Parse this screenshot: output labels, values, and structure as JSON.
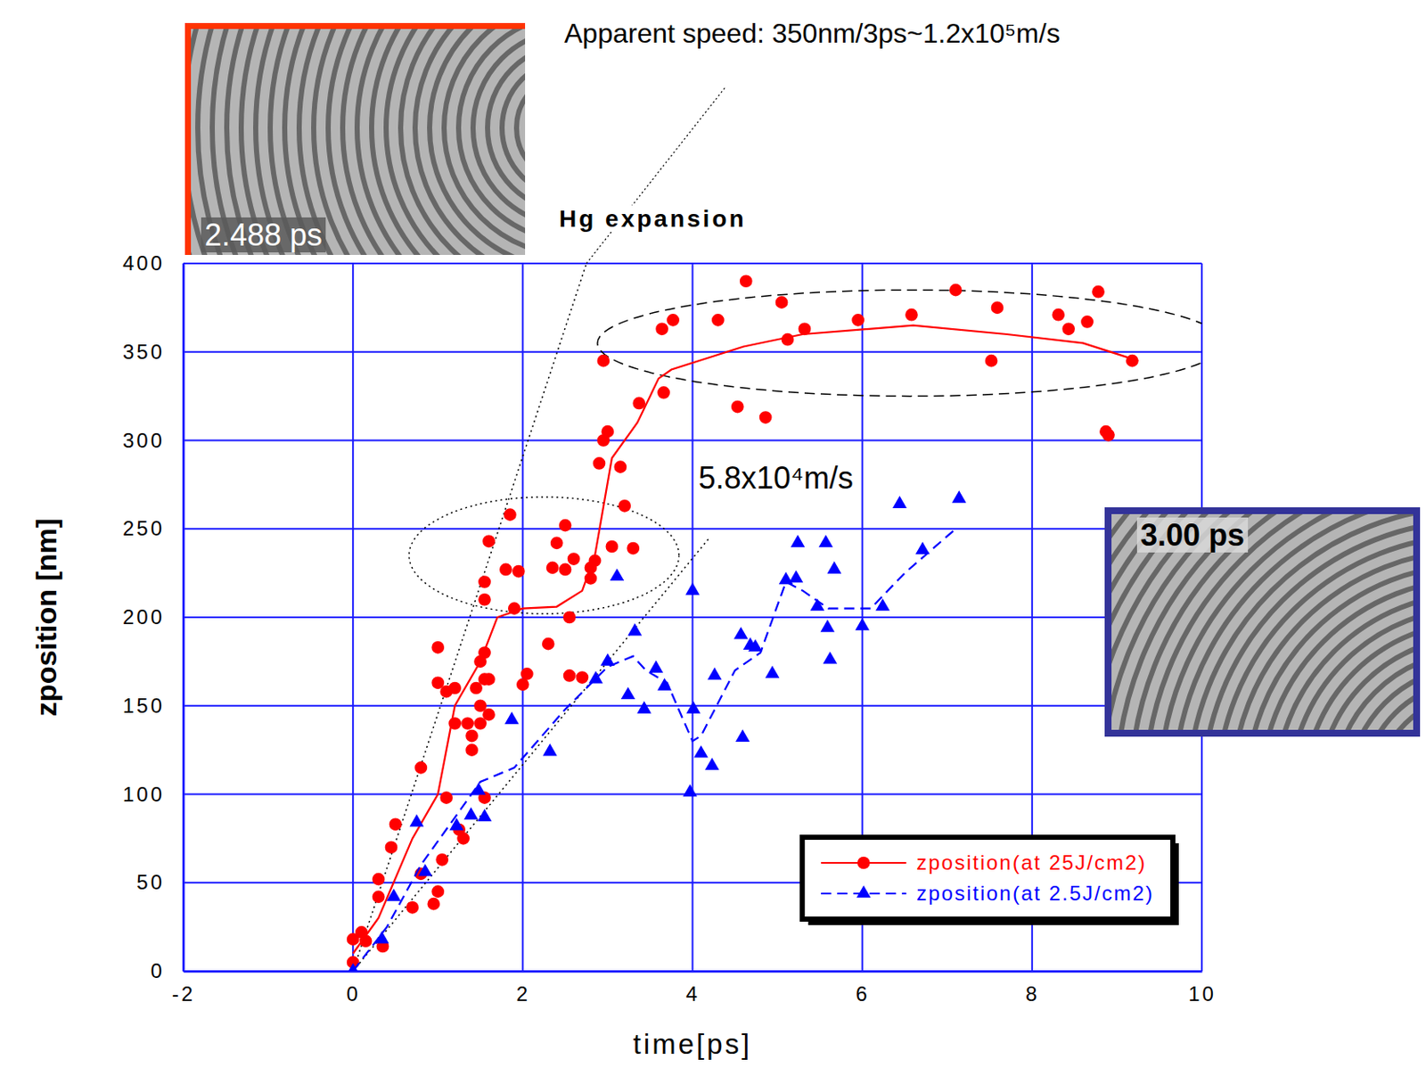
{
  "chart_data": {
    "type": "scatter",
    "title": "Hg expansion",
    "x_label": "time[ps]",
    "y_label": "zposition [nm]",
    "xlim": [
      -2,
      10
    ],
    "xticks": [
      -2,
      0,
      2,
      4,
      6,
      8,
      10
    ],
    "ylim": [
      0,
      400
    ],
    "yticks": [
      0,
      50,
      100,
      150,
      200,
      250,
      300,
      350,
      400
    ],
    "grid": true,
    "legend": "lower right",
    "series": [
      {
        "name": "zposition(at 25J/cm2)",
        "color": "#ff0000",
        "marker": "circle",
        "line_style": "solid",
        "x": [
          0,
          0,
          0.1,
          0.15,
          0.3,
          0.3,
          0.35,
          0.45,
          0.5,
          0.7,
          0.8,
          0.8,
          0.95,
          1.0,
          1.05,
          1.0,
          1.0,
          1.1,
          1.2,
          1.1,
          1.2,
          1.25,
          1.3,
          1.35,
          1.4,
          1.4,
          1.45,
          1.5,
          1.55,
          1.55,
          1.5,
          1.5,
          1.6,
          1.6,
          1.55,
          1.55,
          1.55,
          1.6,
          1.8,
          1.85,
          1.9,
          1.95,
          2.0,
          2.05,
          2.3,
          2.4,
          2.35,
          2.5,
          2.5,
          2.55,
          2.55,
          2.7,
          2.6,
          2.8,
          2.8,
          2.85,
          2.9,
          2.95,
          2.95,
          3.0,
          3.15,
          3.05,
          3.2,
          3.3,
          3.37,
          3.66,
          3.64,
          3.77,
          4.3,
          4.63,
          4.53,
          4.86,
          5.05,
          5.12,
          5.32,
          5.95,
          6.58,
          7.1,
          7.52,
          7.59,
          8.31,
          8.43,
          8.65,
          8.78,
          8.87,
          8.9,
          9.18
        ],
        "values": [
          18,
          5,
          22,
          17,
          52,
          42,
          14,
          70,
          83,
          36,
          55,
          115,
          38,
          45,
          63,
          183,
          163,
          158,
          160,
          98,
          140,
          80,
          75,
          140,
          133,
          125,
          160,
          175,
          180,
          165,
          150,
          140,
          145,
          165,
          98,
          220,
          210,
          243,
          227,
          258,
          205,
          226,
          162,
          168,
          185,
          242,
          228,
          227,
          252,
          167,
          200,
          166,
          233,
          222,
          228,
          232,
          287,
          345,
          300,
          305,
          285,
          240,
          263,
          239,
          321,
          327,
          363,
          368,
          368,
          390,
          319,
          313,
          378,
          357,
          363,
          368,
          371,
          385,
          345,
          375,
          371,
          363,
          367,
          384,
          305,
          303,
          345
        ],
        "trend": {
          "x": [
            0,
            0.3,
            0.7,
            1.0,
            1.2,
            1.5,
            1.7,
            2.0,
            2.4,
            2.7,
            2.85,
            3.05,
            3.35,
            3.6,
            3.75,
            4.6,
            5.3,
            6.6,
            7.7,
            8.6,
            9.25
          ],
          "values": [
            10,
            30,
            75,
            100,
            150,
            175,
            200,
            205,
            206,
            215,
            235,
            290,
            310,
            335,
            340,
            353,
            360,
            365,
            360,
            355,
            345
          ]
        }
      },
      {
        "name": "zposition(at 2.5J/cm2)",
        "color": "#0000ff",
        "marker": "triangle",
        "line_style": "dashed",
        "x": [
          0,
          0.34,
          0.48,
          0.75,
          0.85,
          1.22,
          1.39,
          1.48,
          1.55,
          1.87,
          2.32,
          2.86,
          3.0,
          3.11,
          3.24,
          3.32,
          3.43,
          3.57,
          3.67,
          3.97,
          4.0,
          4.01,
          4.1,
          4.23,
          4.26,
          4.59,
          4.57,
          4.68,
          4.74,
          4.94,
          5.1,
          5.24,
          5.22,
          5.47,
          5.57,
          5.59,
          5.62,
          5.67,
          6.0,
          6.24,
          6.44,
          6.71,
          7.14
        ],
        "values": [
          0,
          18,
          42,
          84,
          56,
          82,
          88,
          102,
          87,
          142,
          124,
          165,
          175,
          223,
          156,
          192,
          148,
          171,
          161,
          101,
          215,
          148,
          123,
          116,
          167,
          132,
          190,
          184,
          183,
          168,
          221,
          242,
          222,
          206,
          242,
          194,
          176,
          227,
          195,
          206,
          264,
          238,
          267
        ],
        "trend": {
          "x": [
            0,
            0.4,
            0.8,
            1.5,
            1.9,
            2.5,
            3.0,
            3.3,
            3.45,
            3.7,
            4.0,
            4.1,
            4.5,
            4.8,
            5.1,
            5.3,
            5.6,
            6.1,
            6.5,
            7.1
          ],
          "values": [
            0,
            25,
            60,
            107,
            115,
            148,
            172,
            178,
            170,
            163,
            130,
            133,
            170,
            180,
            220,
            215,
            205,
            205,
            225,
            250
          ]
        }
      }
    ],
    "annotations": [
      {
        "text": "Apparent speed: 350nm/3ps~1.2x10⁵m/s",
        "line_style": "dotted",
        "line": {
          "x": [
            0,
            2.75
          ],
          "y": [
            0,
            400
          ]
        }
      },
      {
        "text": "5.8x10⁴m/s",
        "line_style": "dotted",
        "line": {
          "x": [
            0,
            4.2
          ],
          "y": [
            0,
            245
          ]
        }
      }
    ],
    "highlights": [
      {
        "x": 6.57,
        "y": 355,
        "rx": 3.69,
        "ry": 30,
        "line_style": "dashed"
      },
      {
        "x": 2.25,
        "y": 235,
        "rx": 1.59,
        "ry": 33,
        "line_style": "dotted"
      }
    ],
    "insets": [
      {
        "label": "2.488 ps",
        "color": "#ff3300"
      },
      {
        "label": "3.00 ps",
        "color": "#333399"
      }
    ]
  }
}
